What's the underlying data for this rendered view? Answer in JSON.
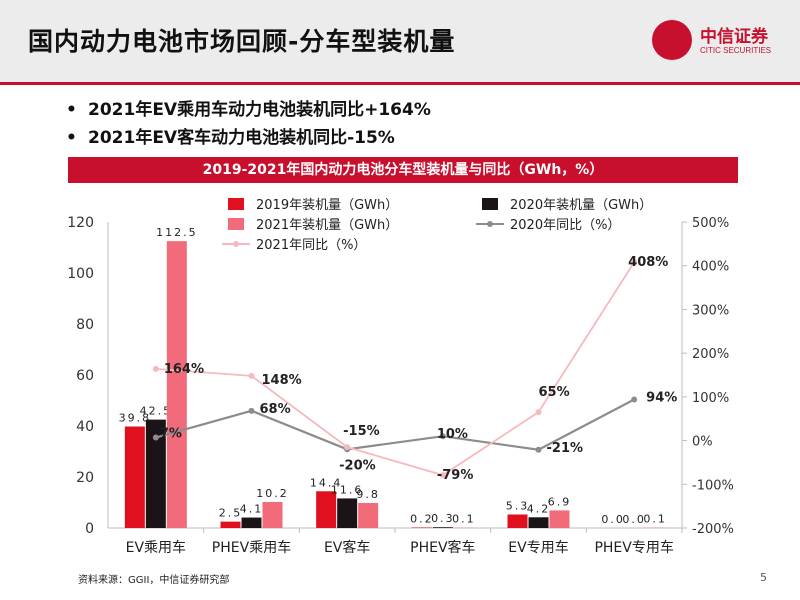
{
  "header": {
    "title": "国内动力电池市场回顾-分车型装机量"
  },
  "logo": {
    "name_cn": "中信证券",
    "name_en": "CITIC SECURITIES"
  },
  "bullets": [
    "2021年EV乘用车动力电池装机同比+164%",
    "2021年EV客车动力电池装机同比-15%"
  ],
  "footer": {
    "source": "资料来源：GGII，中信证券研究部",
    "page": "5"
  },
  "colors": {
    "accent": "#c8102e",
    "s2019": "#e0101e",
    "s2020": "#1a1416",
    "s2021": "#f26b7a",
    "yoy2020": "#8c8c8c",
    "yoy2021": "#f6b9bd"
  },
  "chart_data": {
    "type": "bar",
    "title": "2019-2021年国内动力电池分车型装机量与同比（GWh，%）",
    "categories": [
      "EV乘用车",
      "PHEV乘用车",
      "EV客车",
      "PHEV客车",
      "EV专用车",
      "PHEV专用车"
    ],
    "series": [
      {
        "name": "2019年装机量（GWh）",
        "type": "bar",
        "axis": "left",
        "values": [
          39.8,
          2.5,
          14.4,
          0.2,
          5.3,
          0.0
        ],
        "labels": [
          "39.8",
          "2.5",
          "14.4",
          "0.2",
          "5.3",
          "0.0"
        ]
      },
      {
        "name": "2020年装机量（GWh）",
        "type": "bar",
        "axis": "left",
        "values": [
          42.5,
          4.1,
          11.6,
          0.3,
          4.2,
          0.0
        ],
        "labels": [
          "42.5",
          "4.1",
          "11.6",
          "0.3",
          "4.2",
          "0.0"
        ]
      },
      {
        "name": "2021年装机量（GWh）",
        "type": "bar",
        "axis": "left",
        "values": [
          112.5,
          10.2,
          9.8,
          0.1,
          6.9,
          0.1
        ],
        "labels": [
          "112.5",
          "10.2",
          "9.8",
          "0.1",
          "6.9",
          "0.1"
        ]
      },
      {
        "name": "2020年同比（%）",
        "type": "line",
        "axis": "right",
        "values": [
          7,
          68,
          -20,
          10,
          -21,
          94
        ],
        "labels": [
          "7%",
          "68%",
          "-20%",
          "10%",
          "-21%",
          "94%"
        ]
      },
      {
        "name": "2021年同比（%）",
        "type": "line",
        "axis": "right",
        "values": [
          164,
          148,
          -15,
          -79,
          65,
          408
        ],
        "labels": [
          "164%",
          "148%",
          "-15%",
          "-79%",
          "65%",
          "408%"
        ]
      }
    ],
    "y_left": {
      "min": 0,
      "max": 120,
      "ticks": [
        "0",
        "20",
        "40",
        "60",
        "80",
        "100",
        "120"
      ]
    },
    "y_right": {
      "min": -200,
      "max": 500,
      "ticks": [
        "-200%",
        "-100%",
        "0%",
        "100%",
        "200%",
        "300%",
        "400%",
        "500%"
      ]
    },
    "legend_position": "top",
    "grid": false
  }
}
